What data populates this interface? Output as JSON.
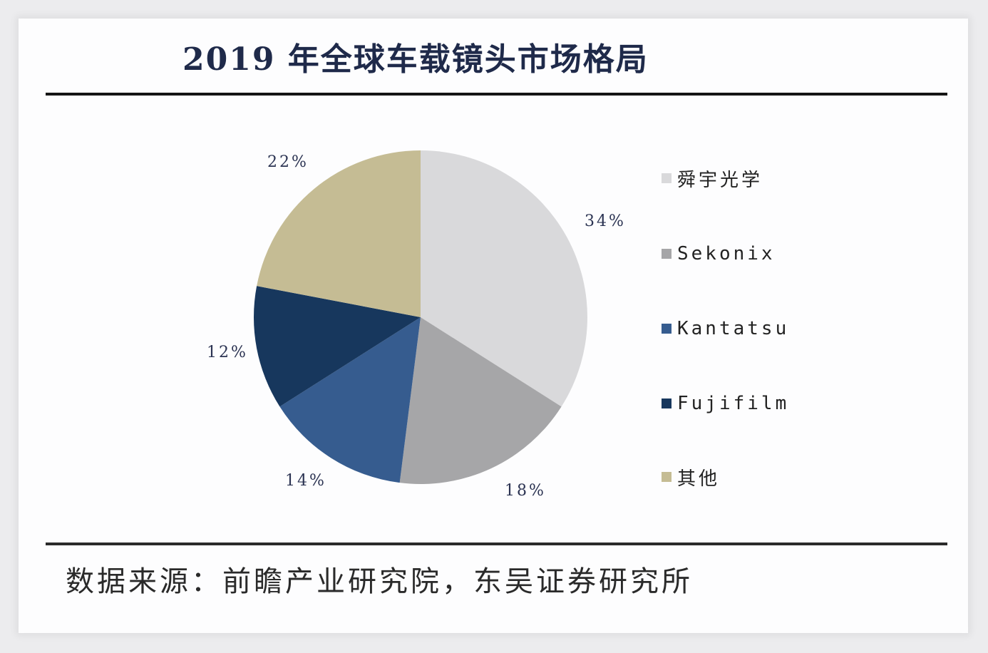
{
  "title": "2019 年全球车载镜头市场格局",
  "source": "数据来源：前瞻产业研究院，东吴证券研究所",
  "chart_data": {
    "type": "pie",
    "title": "2019 年全球车载镜头市场格局",
    "start_angle_deg": 0,
    "direction": "clockwise",
    "categories": [
      "舜宇光学",
      "Sekonix",
      "Kantatsu",
      "Fujifilm",
      "其他"
    ],
    "values": [
      34,
      18,
      14,
      12,
      22
    ],
    "labels": [
      "34%",
      "18%",
      "14%",
      "12%",
      "22%"
    ],
    "colors": [
      "#d9d9db",
      "#a6a6a8",
      "#365c8f",
      "#17375d",
      "#c5bc94"
    ],
    "legend_position": "right",
    "source": "数据来源：前瞻产业研究院，东吴证券研究所"
  }
}
